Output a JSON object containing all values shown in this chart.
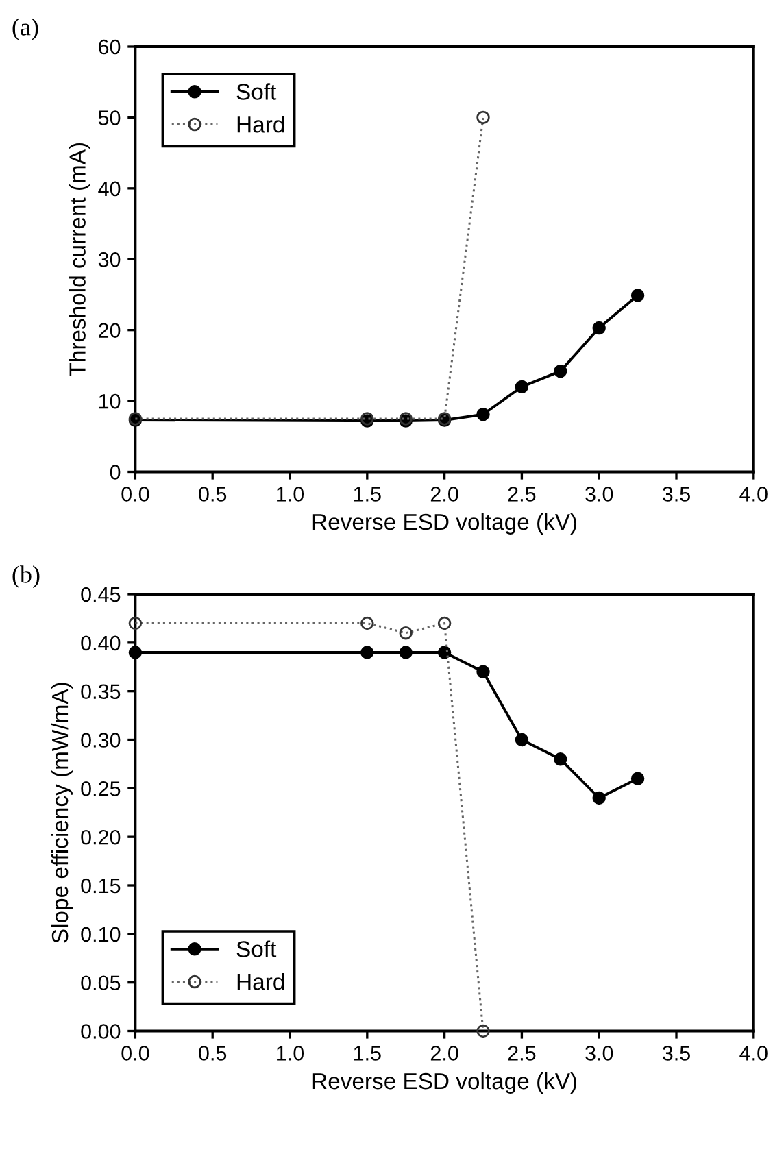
{
  "chart_data": [
    {
      "type": "line",
      "title": "(a)",
      "xlabel": "Reverse ESD voltage (kV)",
      "ylabel": "Threshold current (mA)",
      "xlim": [
        0,
        4
      ],
      "xticks": [
        {
          "value": 0,
          "label": "0.0"
        },
        {
          "value": 0.5,
          "label": "0.5"
        },
        {
          "value": 1,
          "label": "1.0"
        },
        {
          "value": 1.5,
          "label": "1.5"
        },
        {
          "value": 2,
          "label": "2.0"
        },
        {
          "value": 2.5,
          "label": "2.5"
        },
        {
          "value": 3,
          "label": "3.0"
        },
        {
          "value": 3.5,
          "label": "3.5"
        },
        {
          "value": 4,
          "label": "4.0"
        }
      ],
      "ylim": [
        0,
        60
      ],
      "yticks": [
        0,
        10,
        20,
        30,
        40,
        50,
        60
      ],
      "legend": "top left",
      "grid": false,
      "series": [
        {
          "name": "Soft",
          "color": "#000000",
          "marker": "circle",
          "line_style": "solid",
          "x": [
            0,
            1.5,
            1.75,
            2.0,
            2.25,
            2.5,
            2.75,
            3.0,
            3.25
          ],
          "values": [
            7.3,
            7.2,
            7.2,
            7.3,
            8.1,
            12.0,
            14.2,
            20.3,
            24.9
          ]
        },
        {
          "name": "Hard",
          "color": "#666666",
          "marker": "circle",
          "line_style": "dotted",
          "x": [
            0,
            1.5,
            1.75,
            2.0,
            2.25
          ],
          "values": [
            7.5,
            7.5,
            7.5,
            7.5,
            50
          ]
        }
      ]
    },
    {
      "type": "line",
      "title": "(b)",
      "xlabel": "Reverse ESD voltage (kV)",
      "ylabel": "Slope efficiency (mW/mA)",
      "xlim": [
        0,
        4
      ],
      "xticks": [
        {
          "value": 0,
          "label": "0.0"
        },
        {
          "value": 0.5,
          "label": "0.5"
        },
        {
          "value": 1,
          "label": "1.0"
        },
        {
          "value": 1.5,
          "label": "1.5"
        },
        {
          "value": 2,
          "label": "2.0"
        },
        {
          "value": 2.5,
          "label": "2.5"
        },
        {
          "value": 3,
          "label": "3.0"
        },
        {
          "value": 3.5,
          "label": "3.5"
        },
        {
          "value": 4,
          "label": "4.0"
        }
      ],
      "ylim": [
        0,
        0.45
      ],
      "yticks": [
        {
          "value": 0,
          "label": "0.00"
        },
        {
          "value": 0.05,
          "label": "0.05"
        },
        {
          "value": 0.1,
          "label": "0.10"
        },
        {
          "value": 0.15,
          "label": "0.15"
        },
        {
          "value": 0.2,
          "label": "0.20"
        },
        {
          "value": 0.25,
          "label": "0.25"
        },
        {
          "value": 0.3,
          "label": "0.30"
        },
        {
          "value": 0.35,
          "label": "0.35"
        },
        {
          "value": 0.4,
          "label": "0.40"
        },
        {
          "value": 0.45,
          "label": "0.45"
        }
      ],
      "legend": "bottom left",
      "grid": false,
      "series": [
        {
          "name": "Soft",
          "color": "#000000",
          "marker": "circle",
          "line_style": "solid",
          "x": [
            0,
            1.5,
            1.75,
            2.0,
            2.25,
            2.5,
            2.75,
            3.0,
            3.25
          ],
          "values": [
            0.39,
            0.39,
            0.39,
            0.39,
            0.37,
            0.3,
            0.28,
            0.24,
            0.26
          ]
        },
        {
          "name": "Hard",
          "color": "#666666",
          "marker": "circle",
          "line_style": "dotted",
          "x": [
            0,
            1.5,
            1.75,
            2.0,
            2.25
          ],
          "values": [
            0.42,
            0.42,
            0.41,
            0.42,
            0
          ]
        }
      ]
    }
  ]
}
